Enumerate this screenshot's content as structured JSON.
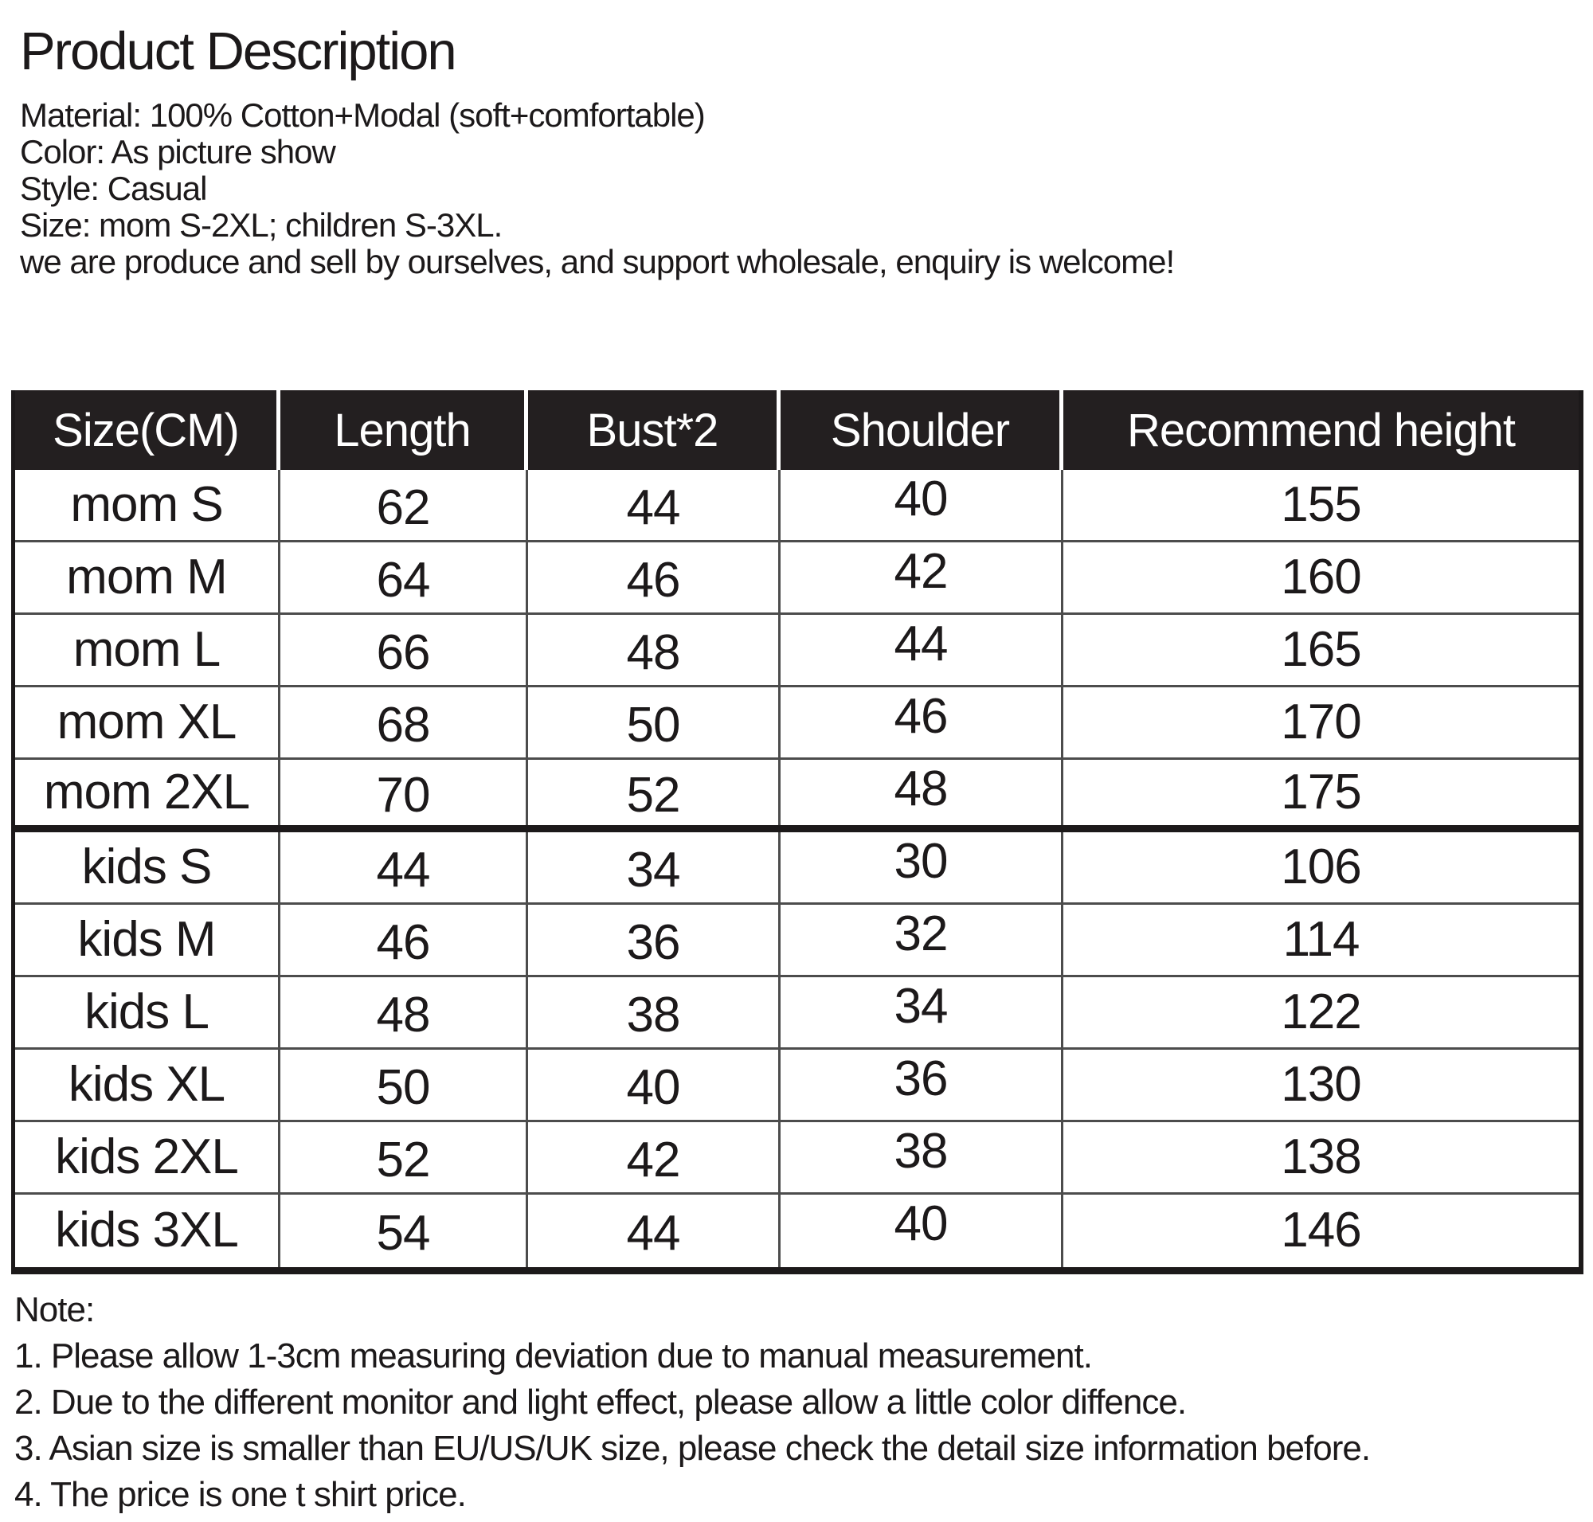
{
  "page": {
    "title": "Product Description",
    "description_lines": [
      "Material: 100% Cotton+Modal (soft+comfortable)",
      "Color: As picture show",
      "Style: Casual",
      "Size: mom S-2XL; children S-3XL.",
      "we are produce and sell by ourselves, and support wholesale, enquiry is welcome!"
    ]
  },
  "size_table": {
    "headers": [
      "Size(CM)",
      "Length",
      "Bust*2",
      "Shoulder",
      "Recommend height"
    ],
    "columns": [
      "size",
      "length",
      "bust2",
      "shoulder",
      "height"
    ],
    "group_separator_after_row_index": 4,
    "rows": [
      {
        "size": "mom S",
        "length": "62",
        "bust2": "44",
        "shoulder": "40",
        "height": "155"
      },
      {
        "size": "mom M",
        "length": "64",
        "bust2": "46",
        "shoulder": "42",
        "height": "160"
      },
      {
        "size": "mom L",
        "length": "66",
        "bust2": "48",
        "shoulder": "44",
        "height": "165"
      },
      {
        "size": "mom XL",
        "length": "68",
        "bust2": "50",
        "shoulder": "46",
        "height": "170"
      },
      {
        "size": "mom 2XL",
        "length": "70",
        "bust2": "52",
        "shoulder": "48",
        "height": "175"
      },
      {
        "size": "kids S",
        "length": "44",
        "bust2": "34",
        "shoulder": "30",
        "height": "106"
      },
      {
        "size": "kids M",
        "length": "46",
        "bust2": "36",
        "shoulder": "32",
        "height": "114"
      },
      {
        "size": "kids L",
        "length": "48",
        "bust2": "38",
        "shoulder": "34",
        "height": "122"
      },
      {
        "size": "kids XL",
        "length": "50",
        "bust2": "40",
        "shoulder": "36",
        "height": "130"
      },
      {
        "size": "kids 2XL",
        "length": "52",
        "bust2": "42",
        "shoulder": "38",
        "height": "138"
      },
      {
        "size": "kids 3XL",
        "length": "54",
        "bust2": "44",
        "shoulder": "40",
        "height": "146"
      }
    ]
  },
  "notes": {
    "label": "Note:",
    "items": [
      "1. Please allow 1-3cm measuring deviation due to manual measurement.",
      "2. Due to the different monitor and light effect, please allow a little color diffence.",
      "3. Asian size is smaller than EU/US/UK size, please check the detail size information before.",
      "4. The price is one t shirt price."
    ]
  },
  "colors": {
    "background": "#ffffff",
    "header_bg": "#231f20",
    "text": "#1c191a",
    "grid_line": "#4c4c4c",
    "thick_line": "#1c191a",
    "header_text": "#ffffff"
  }
}
